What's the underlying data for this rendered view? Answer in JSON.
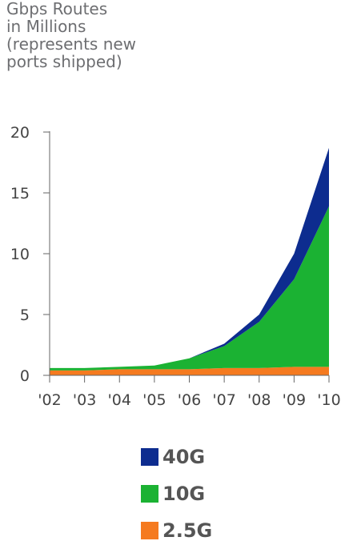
{
  "chart_data": {
    "type": "area",
    "title_lines": [
      "Gbps Routes",
      "in Millions",
      "(represents new",
      "ports shipped)"
    ],
    "categories": [
      "'02",
      "'03",
      "'04",
      "'05",
      "'06",
      "'07",
      "'08",
      "'09",
      "'10"
    ],
    "yticks": [
      "0",
      "5",
      "10",
      "15",
      "20"
    ],
    "ylim": [
      0,
      20
    ],
    "stacked": true,
    "series": [
      {
        "name": "2.5G",
        "color": "#f57a1f",
        "values": [
          0.4,
          0.4,
          0.5,
          0.5,
          0.5,
          0.6,
          0.6,
          0.7,
          0.7
        ]
      },
      {
        "name": "10G",
        "color": "#1bb233",
        "values": [
          0.2,
          0.2,
          0.2,
          0.3,
          0.9,
          1.8,
          3.8,
          7.2,
          13.2
        ]
      },
      {
        "name": "40G",
        "color": "#0d2c8f",
        "values": [
          0.0,
          0.0,
          0.0,
          0.0,
          0.0,
          0.2,
          0.6,
          2.1,
          4.8
        ]
      }
    ],
    "legend_order": [
      "40G",
      "10G",
      "2.5G"
    ],
    "grid": false
  }
}
